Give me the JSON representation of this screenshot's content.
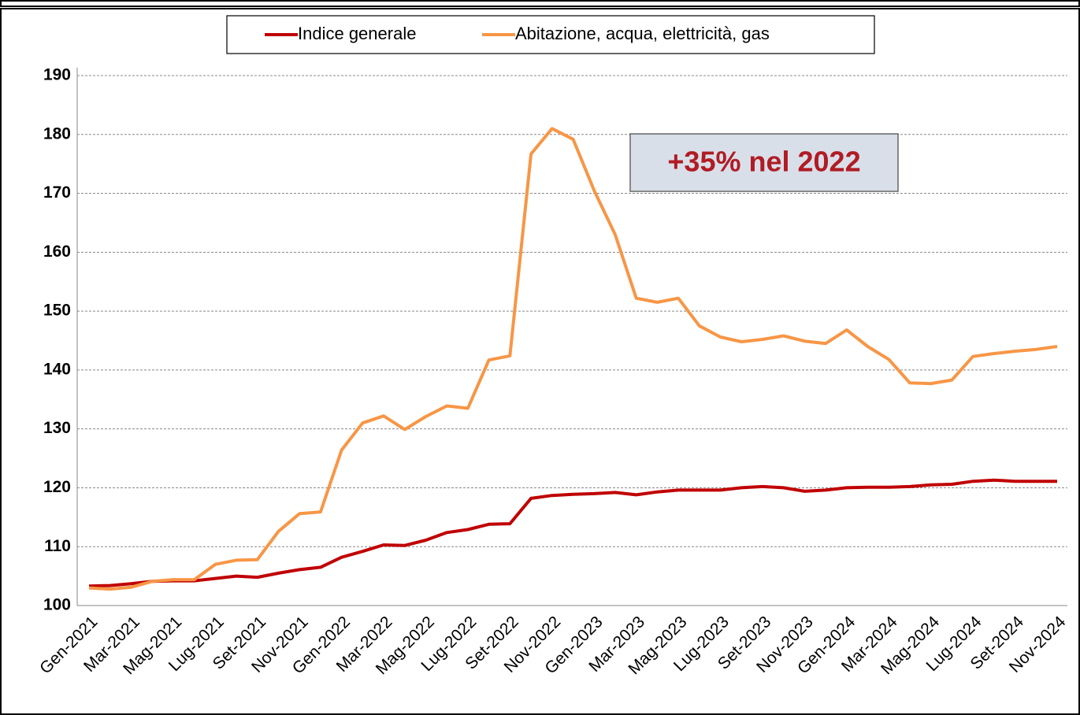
{
  "chart_data": {
    "type": "line",
    "annotation": "+35% nel 2022",
    "categories": [
      "Gen-2021",
      null,
      "Mar-2021",
      null,
      "Mag-2021",
      null,
      "Lug-2021",
      null,
      "Set-2021",
      null,
      "Nov-2021",
      null,
      "Gen-2022",
      null,
      "Mar-2022",
      null,
      "Mag-2022",
      null,
      "Lug-2022",
      null,
      "Set-2022",
      null,
      "Nov-2022",
      null,
      "Gen-2023",
      null,
      "Mar-2023",
      null,
      "Mag-2023",
      null,
      "Lug-2023",
      null,
      "Set-2023",
      null,
      "Nov-2023",
      null,
      "Gen-2024",
      null,
      "Mar-2024",
      null,
      "Mag-2024",
      null,
      "Lug-2024",
      null,
      "Set-2024",
      null,
      "Nov-2024"
    ],
    "series": [
      {
        "name": "Indice generale",
        "color": "#c00000",
        "values": [
          103.3,
          103.4,
          103.7,
          104.1,
          104.2,
          104.2,
          104.6,
          105,
          104.8,
          105.5,
          106.1,
          106.5,
          108.2,
          109.2,
          110.3,
          110.2,
          111.1,
          112.4,
          112.9,
          113.8,
          113.9,
          118.2,
          118.7,
          118.9,
          119,
          119.2,
          118.8,
          119.3,
          119.6,
          119.6,
          119.6,
          120,
          120.2,
          120,
          119.4,
          119.6,
          120,
          120.1,
          120.1,
          120.2,
          120.5,
          120.6,
          121.1,
          121.3,
          121.1,
          121.1,
          121.1
        ]
      },
      {
        "name": "Abitazione, acqua, elettricità, gas",
        "color": "#f79646",
        "values": [
          103,
          102.8,
          103.1,
          104.1,
          104.4,
          104.4,
          107,
          107.7,
          107.8,
          112.6,
          115.6,
          115.9,
          126.4,
          131,
          132.2,
          129.9,
          132.1,
          133.9,
          133.5,
          141.7,
          142.4,
          176.7,
          181,
          179.2,
          170.5,
          163,
          152.2,
          151.5,
          152.2,
          147.5,
          145.6,
          144.8,
          145.2,
          145.8,
          144.9,
          144.5,
          146.8,
          144,
          141.8,
          137.8,
          137.7,
          138.3,
          142.3,
          142.8,
          143.2,
          143.5,
          144
        ]
      }
    ],
    "ylim": [
      100,
      190
    ],
    "yticks": [
      100,
      110,
      120,
      130,
      140,
      150,
      160,
      170,
      180,
      190
    ],
    "grid": true,
    "legend": "top"
  }
}
